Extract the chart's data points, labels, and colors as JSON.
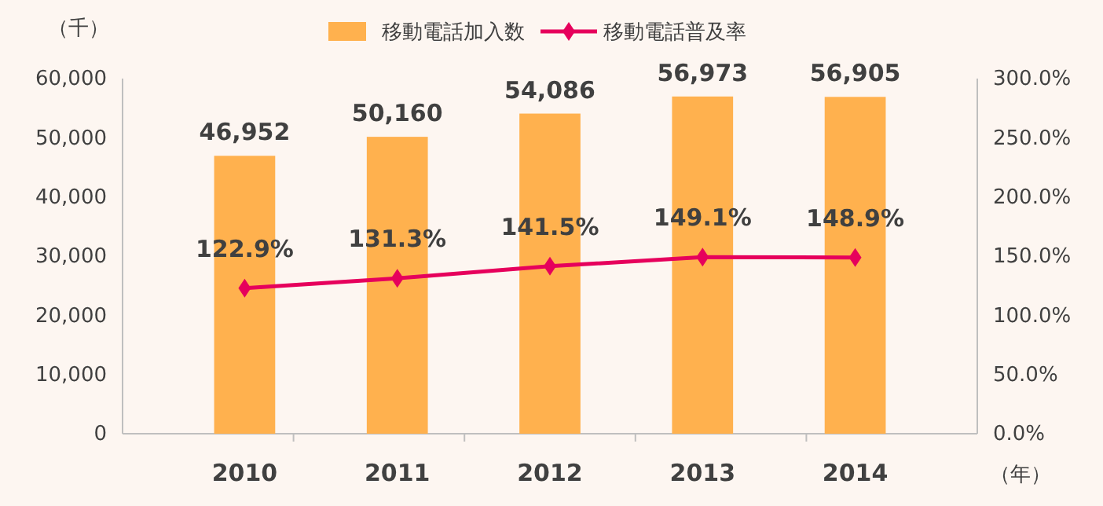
{
  "chart_data": {
    "type": "bar",
    "ylabel": "（千）",
    "xlabel": "（年）",
    "categories": [
      "2010",
      "2011",
      "2012",
      "2013",
      "2014"
    ],
    "series": [
      {
        "name": "移動電話加入数",
        "color": "#ffb14e",
        "values": [
          46952,
          50160,
          54086,
          56973,
          56905
        ],
        "value_labels": [
          "46,952",
          "50,160",
          "54,086",
          "56,973",
          "56,905"
        ]
      },
      {
        "name": "移動電話普及率",
        "type": "line",
        "axis": "y2",
        "color": "#e6005c",
        "values": [
          122.9,
          131.3,
          141.5,
          149.1,
          148.9
        ],
        "value_labels": [
          "122.9%",
          "131.3%",
          "141.5%",
          "149.1%",
          "148.9%"
        ]
      }
    ],
    "ylim": [
      0,
      60000
    ],
    "yticks": [
      {
        "value": 0,
        "label": "0"
      },
      {
        "value": 10000,
        "label": "10,000"
      },
      {
        "value": 20000,
        "label": "20,000"
      },
      {
        "value": 30000,
        "label": "30,000"
      },
      {
        "value": 40000,
        "label": "40,000"
      },
      {
        "value": 50000,
        "label": "50,000"
      },
      {
        "value": 60000,
        "label": "60,000"
      }
    ],
    "y2lim": [
      0,
      300
    ],
    "y2ticks": [
      {
        "value": 0,
        "label": "0.0%"
      },
      {
        "value": 50,
        "label": "50.0%"
      },
      {
        "value": 100,
        "label": "100.0%"
      },
      {
        "value": 150,
        "label": "150.0%"
      },
      {
        "value": 200,
        "label": "200.0%"
      },
      {
        "value": 250,
        "label": "250.0%"
      },
      {
        "value": 300,
        "label": "300.0%"
      }
    ],
    "legend": "top",
    "marker": "diamond",
    "grid": false
  }
}
